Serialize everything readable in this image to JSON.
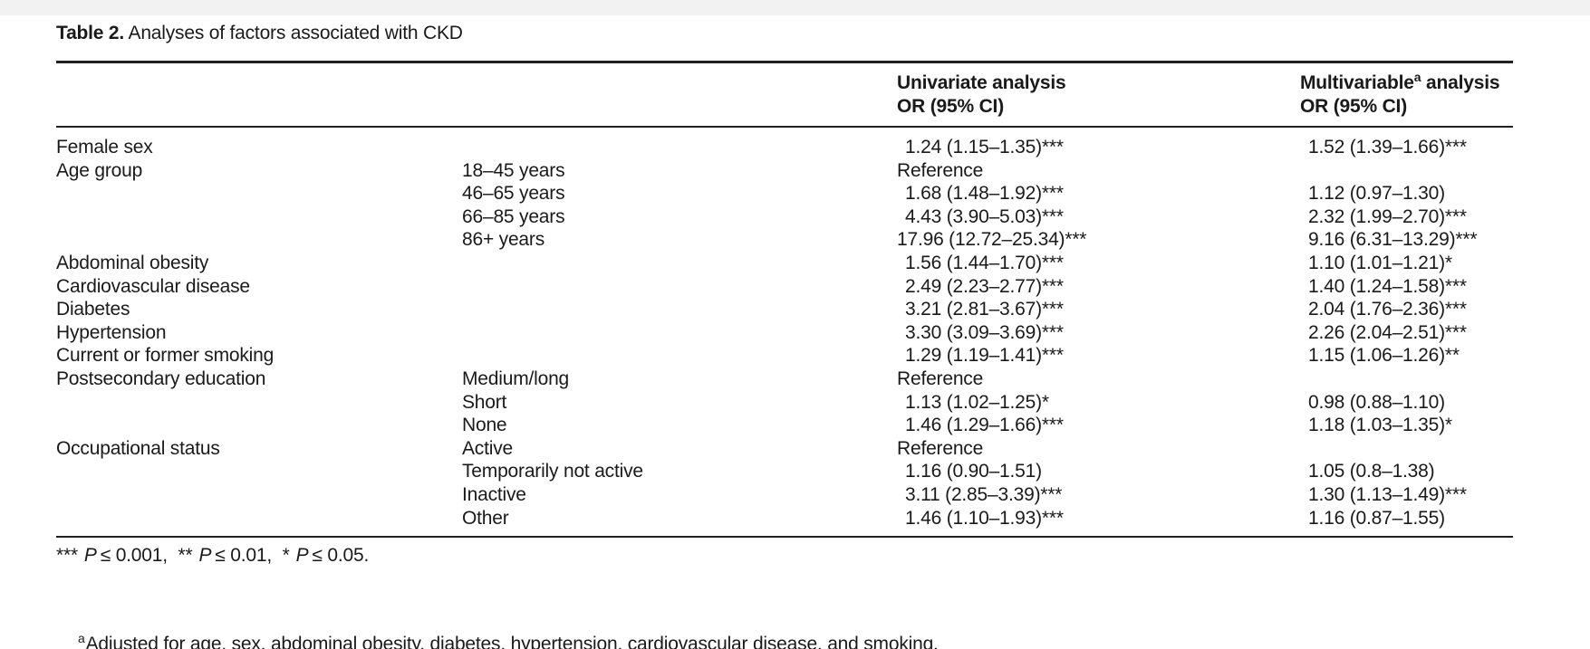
{
  "title": {
    "label": "Table 2.",
    "caption": " Analyses of factors associated with CKD"
  },
  "columns": {
    "univariate": {
      "line1": "Univariate analysis",
      "line2": "OR (95% CI)"
    },
    "multivariable": {
      "line1_main": "Multivariable",
      "line1_sup": "a",
      "line1_rest": " analysis",
      "line2": "OR (95% CI)"
    }
  },
  "rows": [
    {
      "factor": "Female sex",
      "category": "",
      "uni": "1.24 (1.15–1.35)***",
      "multi": "1.52 (1.39–1.66)***"
    },
    {
      "factor": "Age group",
      "category": "18–45 years",
      "uni": "Reference",
      "multi": ""
    },
    {
      "factor": "",
      "category": "46–65 years",
      "uni": "1.68 (1.48–1.92)***",
      "multi": "1.12 (0.97–1.30)"
    },
    {
      "factor": "",
      "category": "66–85 years",
      "uni": "4.43 (3.90–5.03)***",
      "multi": "2.32 (1.99–2.70)***"
    },
    {
      "factor": "",
      "category": "86+ years",
      "uni": "17.96 (12.72–25.34)***",
      "multi": "9.16 (6.31–13.29)***"
    },
    {
      "factor": "Abdominal obesity",
      "category": "",
      "uni": "1.56 (1.44–1.70)***",
      "multi": "1.10 (1.01–1.21)*"
    },
    {
      "factor": "Cardiovascular disease",
      "category": "",
      "uni": "2.49 (2.23–2.77)***",
      "multi": "1.40 (1.24–1.58)***"
    },
    {
      "factor": "Diabetes",
      "category": "",
      "uni": "3.21 (2.81–3.67)***",
      "multi": "2.04 (1.76–2.36)***"
    },
    {
      "factor": "Hypertension",
      "category": "",
      "uni": "3.30 (3.09–3.69)***",
      "multi": "2.26 (2.04–2.51)***"
    },
    {
      "factor": "Current or former smoking",
      "category": "",
      "uni": "1.29 (1.19–1.41)***",
      "multi": "1.15 (1.06–1.26)**"
    },
    {
      "factor": "Postsecondary education",
      "category": "Medium/long",
      "uni": "Reference",
      "multi": ""
    },
    {
      "factor": "",
      "category": "Short",
      "uni": "1.13 (1.02–1.25)*",
      "multi": "0.98 (0.88–1.10)"
    },
    {
      "factor": "",
      "category": "None",
      "uni": "1.46 (1.29–1.66)***",
      "multi": "1.18 (1.03–1.35)*"
    },
    {
      "factor": "Occupational status",
      "category": "Active",
      "uni": "Reference",
      "multi": ""
    },
    {
      "factor": "",
      "category": "Temporarily not active",
      "uni": "1.16 (0.90–1.51)",
      "multi": "1.05 (0.8–1.38)"
    },
    {
      "factor": "",
      "category": "Inactive",
      "uni": "3.11 (2.85–3.39)***",
      "multi": "1.30 (1.13–1.49)***"
    },
    {
      "factor": "",
      "category": "Other",
      "uni": "1.46 (1.10–1.93)***",
      "multi": "1.16 (0.87–1.55)"
    }
  ],
  "footnotes": {
    "sig": [
      {
        "stars": "***",
        "p": "P",
        "cond": "≤ 0.001,"
      },
      {
        "stars": "**",
        "p": "P",
        "cond": "≤ 0.01,"
      },
      {
        "stars": "*",
        "p": "P",
        "cond": "≤ 0.05."
      }
    ],
    "adjusted": {
      "sup": "a",
      "text": "Adjusted for age, sex, abdominal obesity, diabetes, hypertension, cardiovascular disease, and smoking."
    }
  },
  "colors": {
    "text": "#1a1a1a",
    "rule": "#231f20",
    "top_strip": "#f2f2f2",
    "background": "#ffffff"
  }
}
